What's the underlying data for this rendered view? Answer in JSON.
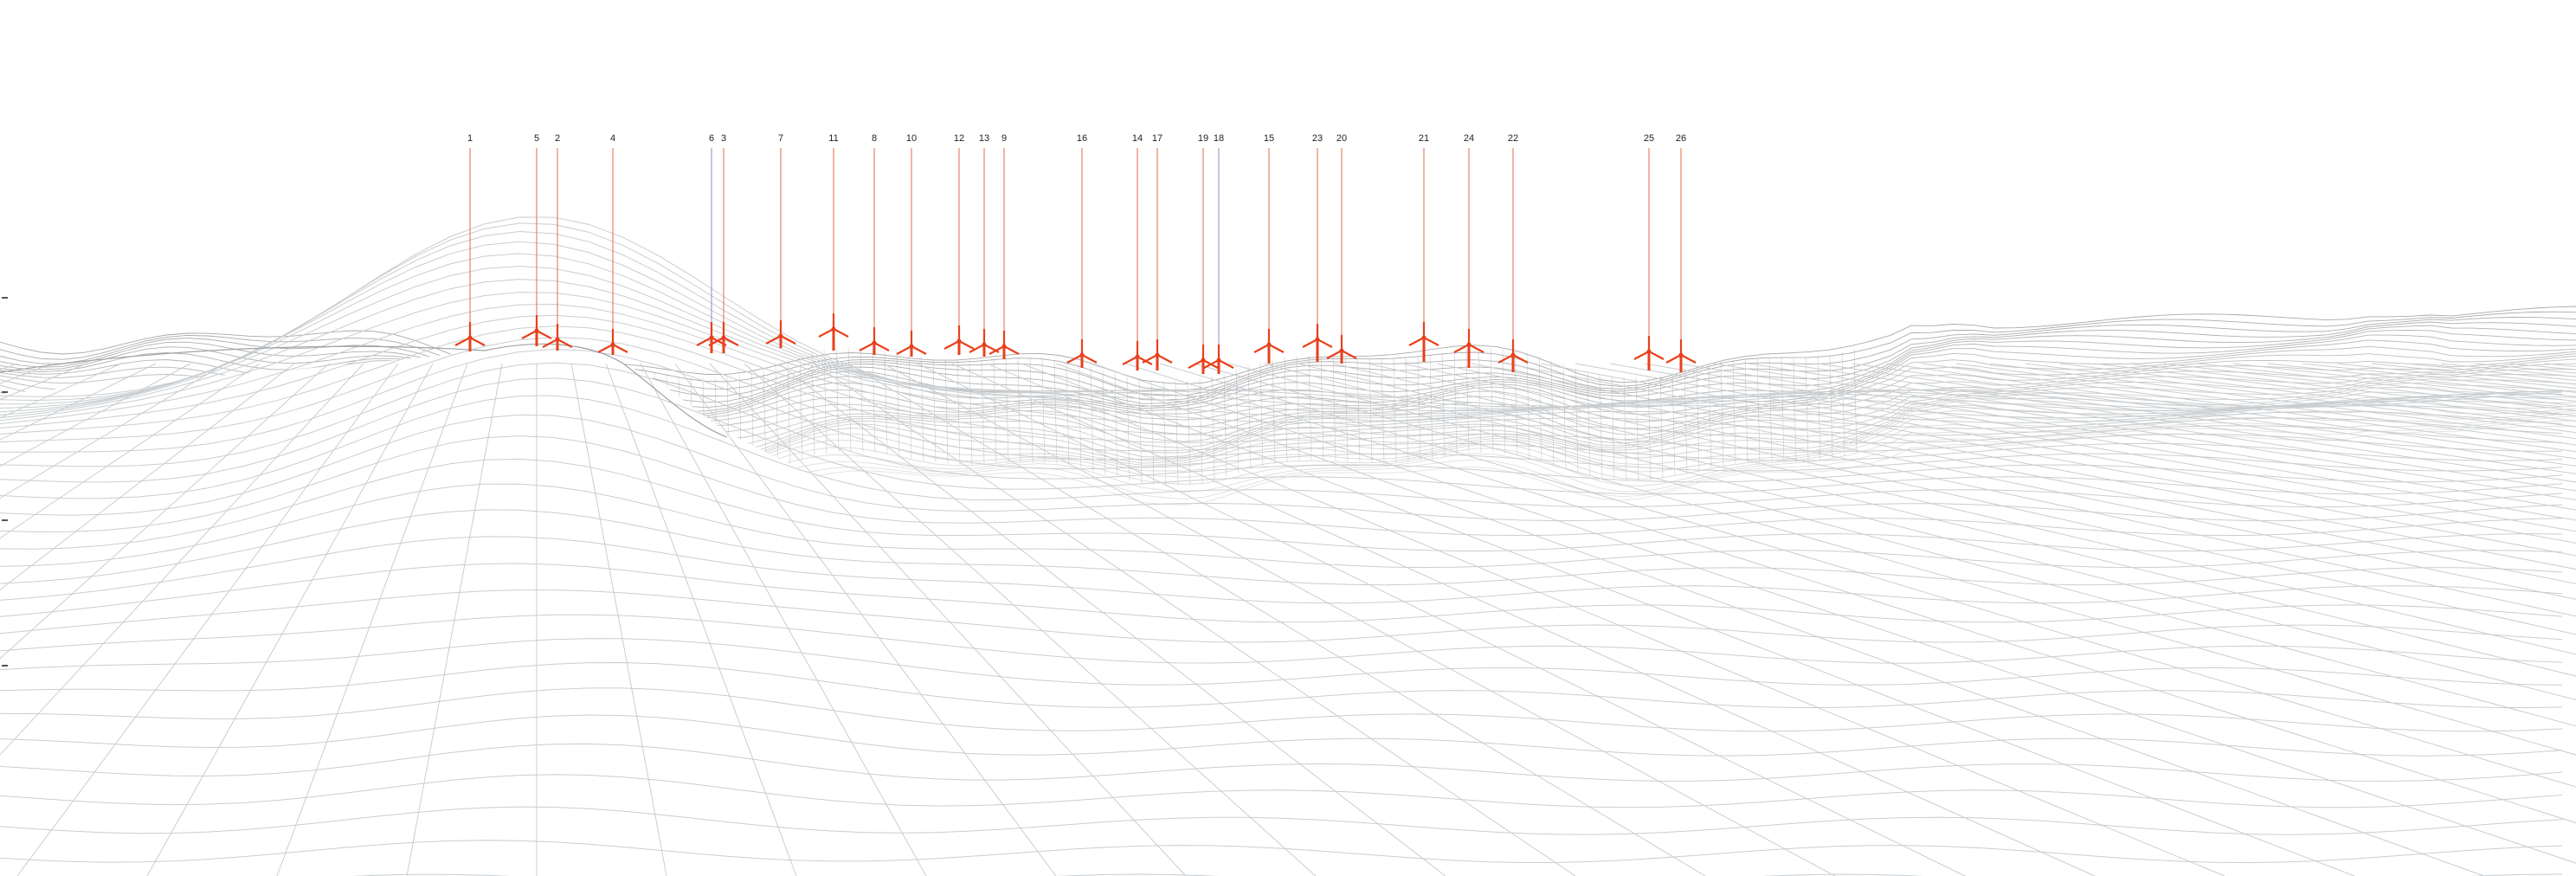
{
  "colors": {
    "turbine": "#e8401c",
    "leader_line": "#e36a4a",
    "leader_line_alt": "#8a8fb5",
    "wireframe_near": "#c9cdd0",
    "wireframe_far": "#8c8c8c",
    "label": "#222222"
  },
  "turbines": [
    {
      "id": "1"
    },
    {
      "id": "5"
    },
    {
      "id": "2"
    },
    {
      "id": "4"
    },
    {
      "id": "6"
    },
    {
      "id": "3"
    },
    {
      "id": "7"
    },
    {
      "id": "11"
    },
    {
      "id": "8"
    },
    {
      "id": "10"
    },
    {
      "id": "12"
    },
    {
      "id": "13"
    },
    {
      "id": "9"
    },
    {
      "id": "16"
    },
    {
      "id": "14"
    },
    {
      "id": "17"
    },
    {
      "id": "19"
    },
    {
      "id": "18"
    },
    {
      "id": "15"
    },
    {
      "id": "23"
    },
    {
      "id": "20"
    },
    {
      "id": "21"
    },
    {
      "id": "24"
    },
    {
      "id": "22"
    },
    {
      "id": "25"
    },
    {
      "id": "26"
    }
  ]
}
